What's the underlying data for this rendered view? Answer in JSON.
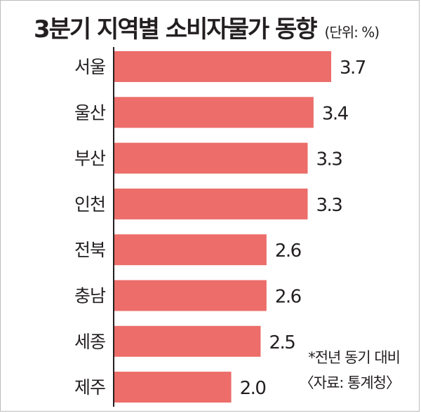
{
  "header": {
    "title": "3분기 지역별 소비자물가 동향",
    "unit": "(단위: %)"
  },
  "notes": {
    "basis": "*전년 동기 대비",
    "source": "〈자료: 통계청〉"
  },
  "colors": {
    "bar": "#ec6d69",
    "axis": "#231f20",
    "text": "#231f20"
  },
  "chart_data": {
    "type": "bar",
    "orientation": "horizontal",
    "title": "3분기 지역별 소비자물가 동향",
    "unit": "(단위: %)",
    "categories": [
      "서울",
      "울산",
      "부산",
      "인천",
      "전북",
      "충남",
      "세종",
      "제주"
    ],
    "values": [
      3.7,
      3.4,
      3.3,
      3.3,
      2.6,
      2.6,
      2.5,
      2.0
    ],
    "value_labels": [
      "3.7",
      "3.4",
      "3.3",
      "3.3",
      "2.6",
      "2.6",
      "2.5",
      "2.0"
    ],
    "xlim": [
      0,
      3.7
    ],
    "grid": false,
    "legend": "none"
  }
}
